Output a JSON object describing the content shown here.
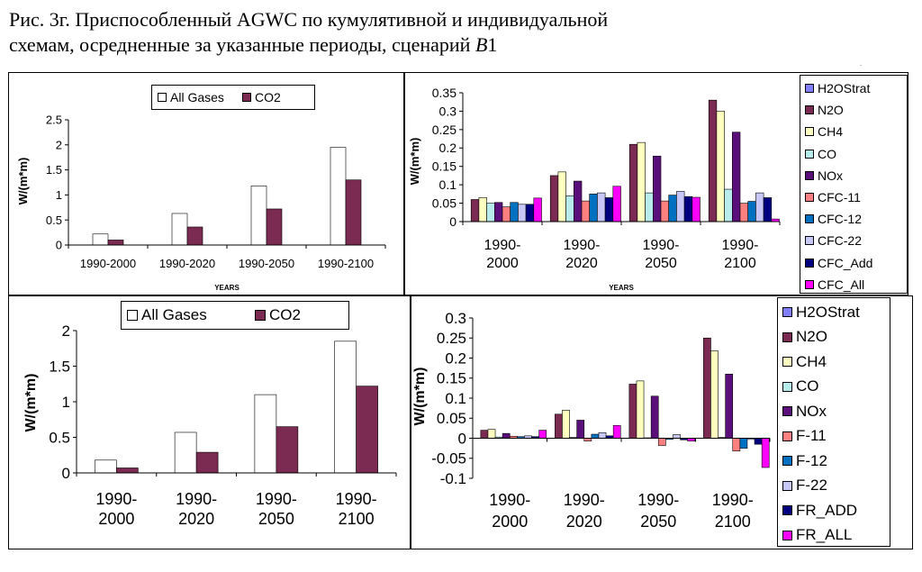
{
  "caption": {
    "line1": "Рис. 3г. Приспособленный AGWC по кумулятивной и индивидуальной",
    "line2_text": "схемам, осредненные за указанные периоды, сценарий ",
    "line2_italic": "B",
    "line2_tail": "1"
  },
  "colors": {
    "all_gases": "#ffffff",
    "co2": "#7b2a52",
    "H2OStrat": "#8080ff",
    "N2O": "#7b2a52",
    "CH4": "#ffffc0",
    "CO": "#b8ecec",
    "NOx": "#5a0f7a",
    "CFC-11": "#ff8080",
    "CFC-12": "#0070c0",
    "CFC-22": "#c8c8f8",
    "CFC_Add": "#000080",
    "CFC_All": "#ff00ff"
  },
  "chart_data": [
    {
      "type": "bar",
      "categories": [
        "1990-2000",
        "1990-2020",
        "1990-2050",
        "1990-2100"
      ],
      "xlabel": "YEARS",
      "ylabel": "W/(m*m)",
      "ylim": [
        0,
        2.5
      ],
      "yticks": [
        "0",
        "0.5",
        "1",
        "1.5",
        "2",
        "2.5"
      ],
      "grid": false,
      "legend": "top",
      "series": [
        {
          "name": "All Gases",
          "values": [
            0.22,
            0.63,
            1.18,
            1.95
          ]
        },
        {
          "name": "CO2",
          "values": [
            0.1,
            0.36,
            0.72,
            1.3
          ]
        }
      ]
    },
    {
      "type": "bar",
      "categories": [
        "1990-\n2000",
        "1990-\n2020",
        "1990-\n2050",
        "1990-\n2100"
      ],
      "xlabel": "YEARS",
      "ylabel": "W/(m*m)",
      "ylim": [
        0,
        0.35
      ],
      "yticks": [
        "0",
        "0.05",
        "0.1",
        "0.15",
        "0.2",
        "0.25",
        "0.3",
        "0.35"
      ],
      "grid": false,
      "legend": "right",
      "series": [
        {
          "name": "H2OStrat",
          "values": [
            0.0,
            0.0,
            0.0,
            0.0
          ]
        },
        {
          "name": "N2O",
          "values": [
            0.06,
            0.125,
            0.21,
            0.33
          ]
        },
        {
          "name": "CH4",
          "values": [
            0.065,
            0.135,
            0.215,
            0.3
          ]
        },
        {
          "name": "CO",
          "values": [
            0.05,
            0.07,
            0.078,
            0.088
          ]
        },
        {
          "name": "NOx",
          "values": [
            0.052,
            0.11,
            0.178,
            0.243
          ]
        },
        {
          "name": "CFC-11",
          "values": [
            0.04,
            0.056,
            0.056,
            0.05
          ]
        },
        {
          "name": "CFC-12",
          "values": [
            0.052,
            0.075,
            0.072,
            0.055
          ]
        },
        {
          "name": "CFC-22",
          "values": [
            0.047,
            0.078,
            0.082,
            0.078
          ]
        },
        {
          "name": "CFC_Add",
          "values": [
            0.047,
            0.065,
            0.068,
            0.065
          ]
        },
        {
          "name": "CFC_All",
          "values": [
            0.064,
            0.096,
            0.066,
            0.007
          ]
        }
      ]
    },
    {
      "type": "bar",
      "categories": [
        "1990-\n2000",
        "1990-\n2020",
        "1990-\n2050",
        "1990-\n2100"
      ],
      "xlabel": "",
      "ylabel": "W/(m*m)",
      "ylim": [
        0,
        2
      ],
      "yticks": [
        "0",
        "0.5",
        "1",
        "1.5",
        "2"
      ],
      "grid": false,
      "legend": "top",
      "series": [
        {
          "name": "All Gases",
          "values": [
            0.18,
            0.57,
            1.1,
            1.85
          ]
        },
        {
          "name": "CO2",
          "values": [
            0.07,
            0.29,
            0.65,
            1.22
          ]
        }
      ]
    },
    {
      "type": "bar",
      "categories": [
        "1990-\n2000",
        "1990-\n2020",
        "1990-\n2050",
        "1990-\n2100"
      ],
      "xlabel": "",
      "ylabel": "W/(m*m)",
      "ylim": [
        -0.1,
        0.3
      ],
      "yticks": [
        "-0.1",
        "-0.05",
        "0",
        "0.05",
        "0.1",
        "0.15",
        "0.2",
        "0.25",
        "0.3"
      ],
      "grid": false,
      "legend": "right",
      "series": [
        {
          "name": "H2OStrat",
          "values": [
            0.0,
            0.0,
            0.0,
            0.0
          ]
        },
        {
          "name": "N2O",
          "values": [
            0.02,
            0.06,
            0.135,
            0.25
          ]
        },
        {
          "name": "CH4",
          "values": [
            0.022,
            0.07,
            0.143,
            0.218
          ]
        },
        {
          "name": "CO",
          "values": [
            0.003,
            0.002,
            0.001,
            0.002
          ]
        },
        {
          "name": "NOx",
          "values": [
            0.012,
            0.045,
            0.105,
            0.16
          ]
        },
        {
          "name": "F-11",
          "values": [
            0.005,
            -0.007,
            -0.018,
            -0.032
          ]
        },
        {
          "name": "F-12",
          "values": [
            0.004,
            0.01,
            -0.003,
            -0.025
          ]
        },
        {
          "name": "F-22",
          "values": [
            0.006,
            0.014,
            0.009,
            -0.003
          ]
        },
        {
          "name": "FR_ADD",
          "values": [
            0.004,
            0.006,
            -0.004,
            -0.015
          ]
        },
        {
          "name": "FR_ALL",
          "values": [
            0.02,
            0.032,
            -0.007,
            -0.073
          ]
        }
      ]
    }
  ]
}
